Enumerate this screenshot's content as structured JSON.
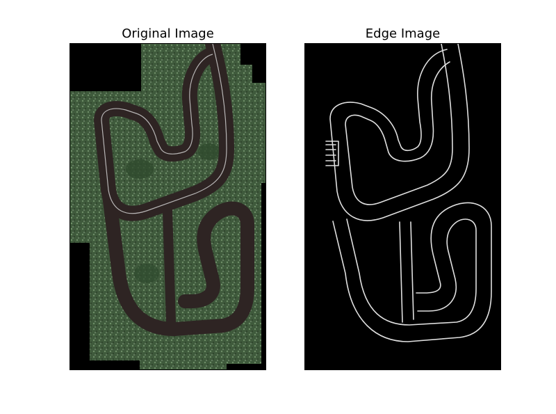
{
  "figure": {
    "panels": [
      {
        "title": "Original Image",
        "image": "aerial photo of a kart race track on green terrain with black no-data margins"
      },
      {
        "title": "Edge Image",
        "image": "white edge outlines of the race track on black background"
      }
    ],
    "colors": {
      "background": "#ffffff",
      "terrain": "#3f5a3c",
      "asphalt": "#2e2423",
      "edge": "#e0e0e0",
      "no_data": "#000000"
    }
  }
}
